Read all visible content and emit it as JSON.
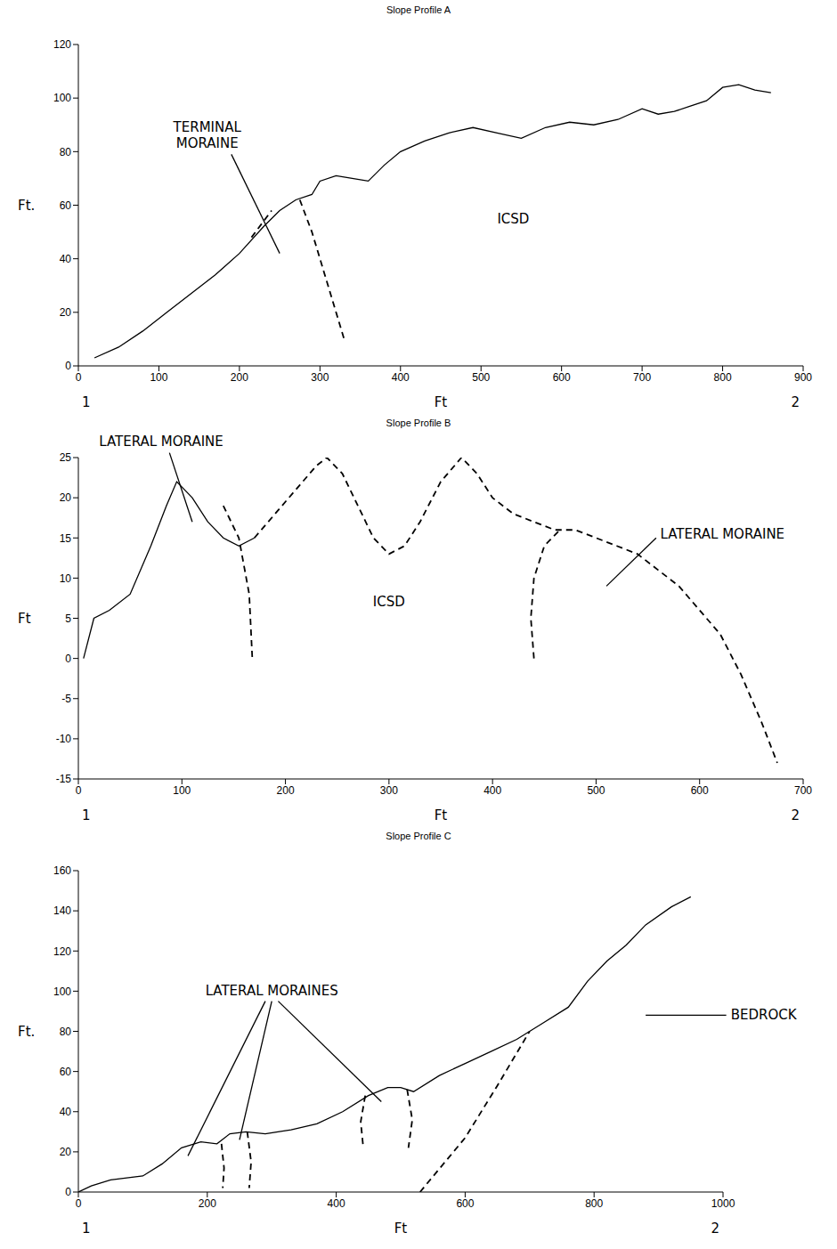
{
  "chart_data": [
    {
      "type": "line",
      "title": "Slope Profile A",
      "xlabel": "Ft",
      "ylabel": "Ft.",
      "xlim": [
        0,
        900
      ],
      "xticks": [
        0,
        100,
        200,
        300,
        400,
        500,
        600,
        700,
        800,
        900
      ],
      "ylim": [
        0,
        120
      ],
      "yticks": [
        0,
        20,
        40,
        60,
        80,
        100,
        120
      ],
      "endpoint_labels": [
        "1",
        "2"
      ],
      "annotations": [
        "TERMINAL MORAINE",
        "ICSD"
      ],
      "series": [
        {
          "color": "#000000",
          "line_style": "solid",
          "x": [
            20,
            50,
            80,
            110,
            140,
            170,
            200,
            230,
            250,
            270,
            290,
            300,
            320,
            340,
            360,
            380,
            400,
            430,
            460,
            490,
            520,
            550,
            580,
            610,
            640,
            670,
            700,
            720,
            740,
            760,
            780,
            800,
            820,
            840,
            860
          ],
          "values": [
            3,
            7,
            13,
            20,
            27,
            34,
            42,
            52,
            58,
            62,
            64,
            69,
            71,
            70,
            69,
            75,
            80,
            84,
            87,
            89,
            87,
            85,
            89,
            91,
            90,
            92,
            96,
            94,
            95,
            97,
            99,
            104,
            105,
            103,
            102
          ]
        },
        {
          "color": "#000000",
          "line_style": "dashed",
          "x": [
            215,
            240
          ],
          "values": [
            48,
            58
          ]
        },
        {
          "color": "#000000",
          "line_style": "dashed",
          "x": [
            275,
            290,
            305,
            320,
            330
          ],
          "values": [
            62,
            50,
            35,
            20,
            10
          ]
        }
      ]
    },
    {
      "type": "line",
      "title": "Slope Profile B",
      "xlabel": "Ft",
      "ylabel": "Ft",
      "xlim": [
        0,
        700
      ],
      "xticks": [
        0,
        100,
        200,
        300,
        400,
        500,
        600,
        700
      ],
      "ylim": [
        -15,
        25
      ],
      "yticks": [
        -15,
        -10,
        -5,
        0,
        5,
        10,
        15,
        20,
        25
      ],
      "endpoint_labels": [
        "1",
        "2"
      ],
      "annotations": [
        "LATERAL MORAINE",
        "ICSD",
        "LATERAL MORAINE"
      ],
      "series": [
        {
          "color": "#000000",
          "line_style": "solid",
          "x": [
            5,
            15,
            30,
            50,
            70,
            85,
            95,
            110,
            125,
            140,
            155,
            170
          ],
          "values": [
            0,
            5,
            6,
            8,
            14,
            19,
            22,
            20,
            17,
            15,
            14,
            15
          ]
        },
        {
          "color": "#000000",
          "line_style": "dashed",
          "x": [
            170,
            190,
            210,
            230,
            240,
            255,
            270,
            285,
            300,
            315,
            330,
            350,
            370,
            385,
            400,
            420,
            440,
            460,
            480,
            500,
            520,
            540,
            560,
            580,
            600,
            620,
            640,
            660,
            675
          ],
          "values": [
            15,
            18,
            21,
            24,
            25,
            23,
            19,
            15,
            13,
            14,
            17,
            22,
            25,
            23,
            20,
            18,
            17,
            16,
            16,
            15,
            14,
            13,
            11,
            9,
            6,
            3,
            -2,
            -8,
            -13
          ]
        },
        {
          "color": "#000000",
          "line_style": "dashed",
          "x": [
            140,
            155,
            165,
            168
          ],
          "values": [
            19,
            15,
            8,
            0
          ]
        },
        {
          "color": "#000000",
          "line_style": "dashed",
          "x": [
            440,
            437,
            440,
            450,
            465
          ],
          "values": [
            0,
            5,
            10,
            14,
            16
          ]
        }
      ]
    },
    {
      "type": "line",
      "title": "Slope Profile C",
      "xlabel": "Ft",
      "ylabel": "Ft.",
      "xlim": [
        0,
        1000
      ],
      "xticks": [
        0,
        200,
        400,
        600,
        800,
        1000
      ],
      "ylim": [
        0,
        160
      ],
      "yticks": [
        0,
        20,
        40,
        60,
        80,
        100,
        120,
        140,
        160
      ],
      "endpoint_labels": [
        "1",
        "2"
      ],
      "annotations": [
        "LATERAL MORAINES",
        "BEDROCK"
      ],
      "series": [
        {
          "color": "#000000",
          "line_style": "solid",
          "x": [
            0,
            20,
            50,
            100,
            130,
            160,
            190,
            215,
            235,
            260,
            290,
            330,
            370,
            410,
            450,
            480,
            500,
            520,
            560,
            600,
            640,
            680,
            720,
            760,
            790,
            820,
            850,
            880,
            920,
            950
          ],
          "values": [
            0,
            3,
            6,
            8,
            14,
            22,
            25,
            24,
            29,
            30,
            29,
            31,
            34,
            40,
            48,
            52,
            52,
            50,
            58,
            64,
            70,
            76,
            84,
            92,
            105,
            115,
            123,
            133,
            142,
            147
          ]
        },
        {
          "color": "#000000",
          "line_style": "dashed",
          "x": [
            222,
            226,
            224
          ],
          "values": [
            24,
            12,
            2
          ]
        },
        {
          "color": "#000000",
          "line_style": "dashed",
          "x": [
            262,
            268,
            265
          ],
          "values": [
            30,
            15,
            2
          ]
        },
        {
          "color": "#000000",
          "line_style": "dashed",
          "x": [
            445,
            438,
            442
          ],
          "values": [
            48,
            35,
            22
          ]
        },
        {
          "color": "#000000",
          "line_style": "dashed",
          "x": [
            510,
            518,
            512
          ],
          "values": [
            51,
            36,
            22
          ]
        },
        {
          "color": "#000000",
          "line_style": "dashed",
          "x": [
            530,
            600,
            650,
            700
          ],
          "values": [
            0,
            27,
            53,
            80
          ]
        }
      ]
    }
  ]
}
